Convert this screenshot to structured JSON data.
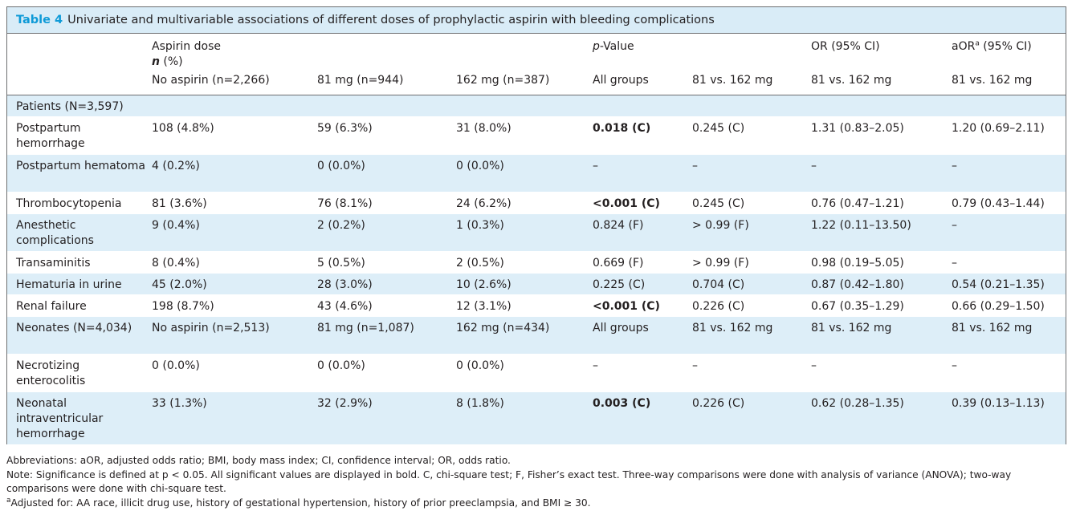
{
  "caption": {
    "label": "Table 4",
    "text": "Univariate and multivariable associations of different doses of prophylactic aspirin with bleeding complications"
  },
  "header": {
    "group1_line1": "Aspirin dose",
    "group1_line2_n": "n",
    "group1_line2_pct": " (%)",
    "pvalue_p": "p",
    "pvalue_rest": "-Value",
    "or_label": "OR (95% CI)",
    "aor_prefix": "aOR",
    "aor_sup": "a",
    "aor_suffix": " (95% CI)",
    "cols": {
      "no_aspirin": "No aspirin (n=2,266)",
      "mg81": "81 mg (n=944)",
      "mg162": "162 mg (n=387)",
      "all_groups": "All groups",
      "p_81_162": "81 vs. 162 mg",
      "or_81_162": "81 vs. 162 mg",
      "aor_81_162": "81 vs. 162 mg"
    }
  },
  "patients_label": "Patients (N=3,597)",
  "rows": [
    {
      "label": "Postpartum hemorrhage",
      "no": "108 (4.8%)",
      "m81": "59 (6.3%)",
      "m162": "31 (8.0%)",
      "pall": "0.018 (C)",
      "p81": "0.245 (C)",
      "or": "1.31 (0.83–2.05)",
      "aor": "1.20 (0.69–2.11)"
    },
    {
      "label": "Postpartum hematoma",
      "no": "4 (0.2%)",
      "m81": "0 (0.0%)",
      "m162": "0 (0.0%)",
      "pall": "–",
      "p81": "–",
      "or": "–",
      "aor": "–"
    },
    {
      "label": "Thrombocytopenia",
      "no": "81 (3.6%)",
      "m81": "76 (8.1%)",
      "m162": "24 (6.2%)",
      "pall": "<0.001 (C)",
      "p81": "0.245 (C)",
      "or": "0.76 (0.47–1.21)",
      "aor": "0.79 (0.43–1.44)"
    },
    {
      "label": "Anesthetic complications",
      "no": "9 (0.4%)",
      "m81": "2 (0.2%)",
      "m162": "1 (0.3%)",
      "pall": "0.824 (F)",
      "p81": "> 0.99 (F)",
      "or": "1.22 (0.11–13.50)",
      "aor": "–"
    },
    {
      "label": "Transaminitis",
      "no": "8 (0.4%)",
      "m81": "5 (0.5%)",
      "m162": "2 (0.5%)",
      "pall": "0.669 (F)",
      "p81": "> 0.99 (F)",
      "or": "0.98 (0.19–5.05)",
      "aor": "–"
    },
    {
      "label": "Hematuria in urine",
      "no": "45 (2.0%)",
      "m81": "28 (3.0%)",
      "m162": "10 (2.6%)",
      "pall": "0.225 (C)",
      "p81": "0.704 (C)",
      "or": "0.87 (0.42–1.80)",
      "aor": "0.54 (0.21–1.35)"
    },
    {
      "label": "Renal failure",
      "no": "198 (8.7%)",
      "m81": "43 (4.6%)",
      "m162": "12 (3.1%)",
      "pall": "<0.001 (C)",
      "p81": "0.226 (C)",
      "or": "0.67 (0.35–1.29)",
      "aor": "0.66 (0.29–1.50)"
    }
  ],
  "neonates": {
    "label": "Neonates (N=4,034)",
    "no": "No aspirin (n=2,513)",
    "m81": "81 mg (n=1,087)",
    "m162": "162 mg (n=434)",
    "pall": "All groups",
    "p81": "81 vs. 162 mg",
    "or": "81 vs. 162 mg",
    "aor": "81 vs. 162 mg"
  },
  "neonate_rows": [
    {
      "label": "Necrotizing enterocolitis",
      "no": "0 (0.0%)",
      "m81": "0 (0.0%)",
      "m162": "0 (0.0%)",
      "pall": "–",
      "p81": "–",
      "or": "–",
      "aor": "–"
    },
    {
      "label": "Neonatal intraventricular hemorrhage",
      "no": "33 (1.3%)",
      "m81": "32 (2.9%)",
      "m162": "8 (1.8%)",
      "pall": "0.003 (C)",
      "p81": "0.226 (C)",
      "or": "0.62 (0.28–1.35)",
      "aor": "0.39 (0.13–1.13)"
    }
  ],
  "notes": {
    "abbreviations": "Abbreviations: aOR, adjusted odds ratio; BMI, body mass index; CI, confidence interval; OR, odds ratio.",
    "note": "Note: Significance is defined at p < 0.05. All significant values are displayed in bold. C, chi-square test; F, Fisher’s exact test. Three-way comparisons were done with analysis of variance (ANOVA); two-way comparisons were done with chi-square test.",
    "footnote_sup": "a",
    "footnote": "Adjusted for: AA race, illicit drug use, history of gestational hypertension, history of prior preeclampsia, and BMI ≥ 30."
  },
  "colors": {
    "caption_label": "#0e9ad7",
    "caption_bg": "#d9ecf7",
    "row_blue": "#ddeef8",
    "border": "#6d6e70"
  }
}
